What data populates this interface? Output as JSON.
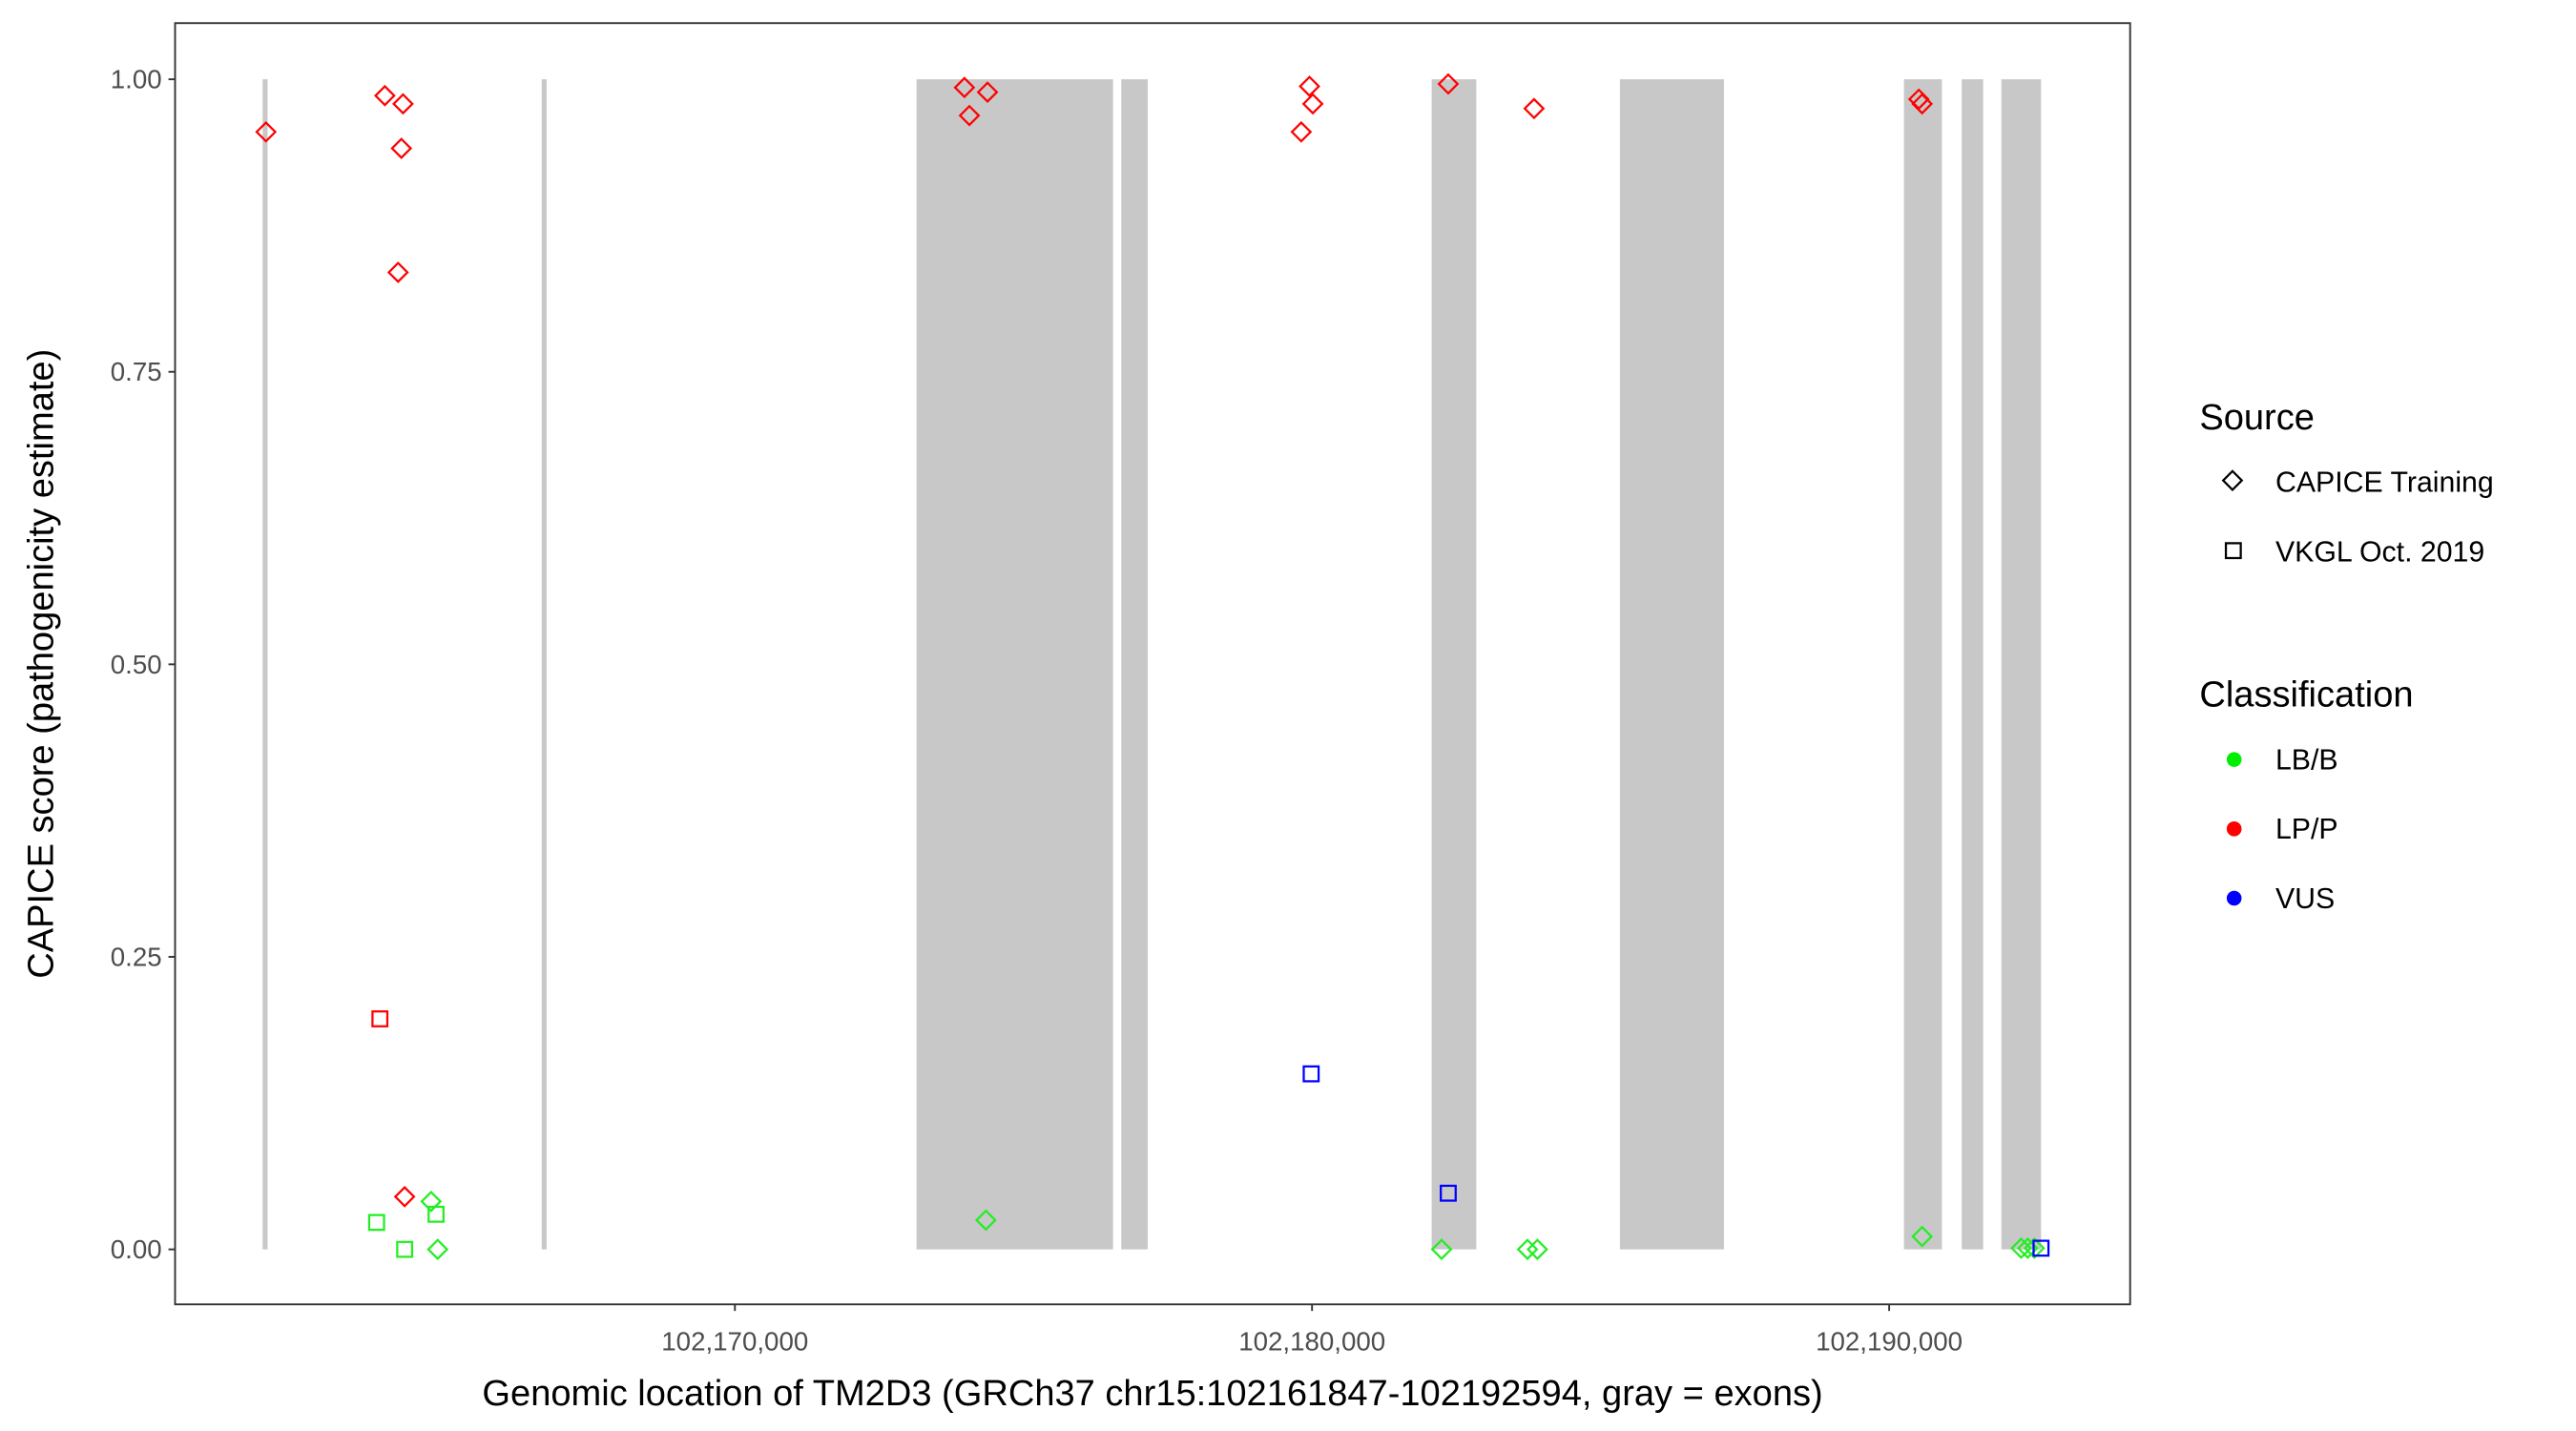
{
  "chart_data": {
    "type": "scatter",
    "title": "",
    "xlabel": "Genomic location of TM2D3 (GRCh37 chr15:102161847-102192594, gray = exons)",
    "ylabel": "CAPICE score (pathogenicity estimate)",
    "xlim": [
      102160300,
      102194175
    ],
    "ylim": [
      -0.047,
      1.048
    ],
    "grid": false,
    "x_ticks": [
      {
        "value": 102170000,
        "label": "102,170,000"
      },
      {
        "value": 102180000,
        "label": "102,180,000"
      },
      {
        "value": 102190000,
        "label": "102,190,000"
      }
    ],
    "y_ticks": [
      {
        "value": 0,
        "label": "0.00"
      },
      {
        "value": 0.25,
        "label": "0.25"
      },
      {
        "value": 0.5,
        "label": "0.50"
      },
      {
        "value": 0.75,
        "label": "0.75"
      },
      {
        "value": 1,
        "label": "1.00"
      }
    ],
    "exons": [
      [
        102161817,
        102161903
      ],
      [
        102166653,
        102166738
      ],
      [
        102173147,
        102176552
      ],
      [
        102176695,
        102177153
      ],
      [
        102182073,
        102182846
      ],
      [
        102185335,
        102187137
      ],
      [
        102190256,
        102190914
      ],
      [
        102191257,
        102191629
      ],
      [
        102191944,
        102192631
      ]
    ],
    "exon_color": "#c8c8c8",
    "legend": {
      "placement": "right",
      "source": {
        "title": "Source",
        "items": [
          {
            "label": "CAPICE Training",
            "shape": "diamond"
          },
          {
            "label": "VKGL Oct. 2019",
            "shape": "square"
          }
        ]
      },
      "classification": {
        "title": "Classification",
        "items": [
          {
            "label": "LB/B",
            "color": "#00ee00"
          },
          {
            "label": "LP/P",
            "color": "#ff0000"
          },
          {
            "label": "VUS",
            "color": "#0000ff"
          }
        ]
      }
    },
    "colors": {
      "LB/B": "#22ee22",
      "LP/P": "#ff0000",
      "VUS": "#0000ff"
    },
    "points": [
      {
        "x": 102161875,
        "y": 0.955,
        "source": "CAPICE Training",
        "class": "LP/P"
      },
      {
        "x": 102163935,
        "y": 0.986,
        "source": "CAPICE Training",
        "class": "LP/P"
      },
      {
        "x": 102164250,
        "y": 0.979,
        "source": "CAPICE Training",
        "class": "LP/P"
      },
      {
        "x": 102164221,
        "y": 0.941,
        "source": "CAPICE Training",
        "class": "LP/P"
      },
      {
        "x": 102164164,
        "y": 0.835,
        "source": "CAPICE Training",
        "class": "LP/P"
      },
      {
        "x": 102164278,
        "y": 0.045,
        "source": "CAPICE Training",
        "class": "LP/P"
      },
      {
        "x": 102173977,
        "y": 0.993,
        "source": "CAPICE Training",
        "class": "LP/P"
      },
      {
        "x": 102174063,
        "y": 0.969,
        "source": "CAPICE Training",
        "class": "LP/P"
      },
      {
        "x": 102174377,
        "y": 0.989,
        "source": "CAPICE Training",
        "class": "LP/P"
      },
      {
        "x": 102179956,
        "y": 0.994,
        "source": "CAPICE Training",
        "class": "LP/P"
      },
      {
        "x": 102180014,
        "y": 0.979,
        "source": "CAPICE Training",
        "class": "LP/P"
      },
      {
        "x": 102179813,
        "y": 0.955,
        "source": "CAPICE Training",
        "class": "LP/P"
      },
      {
        "x": 102182360,
        "y": 0.996,
        "source": "CAPICE Training",
        "class": "LP/P"
      },
      {
        "x": 102183847,
        "y": 0.975,
        "source": "CAPICE Training",
        "class": "LP/P"
      },
      {
        "x": 102190514,
        "y": 0.983,
        "source": "CAPICE Training",
        "class": "LP/P"
      },
      {
        "x": 102190571,
        "y": 0.979,
        "source": "CAPICE Training",
        "class": "LP/P"
      },
      {
        "x": 102163849,
        "y": 0.197,
        "source": "VKGL Oct. 2019",
        "class": "LP/P"
      },
      {
        "x": 102164736,
        "y": 0.041,
        "source": "CAPICE Training",
        "class": "LB/B"
      },
      {
        "x": 102164850,
        "y": 0.0,
        "source": "CAPICE Training",
        "class": "LB/B"
      },
      {
        "x": 102174349,
        "y": 0.025,
        "source": "CAPICE Training",
        "class": "LB/B"
      },
      {
        "x": 102182245,
        "y": 0.0,
        "source": "CAPICE Training",
        "class": "LB/B"
      },
      {
        "x": 102183733,
        "y": 0.0,
        "source": "CAPICE Training",
        "class": "LB/B"
      },
      {
        "x": 102183905,
        "y": 0.0,
        "source": "CAPICE Training",
        "class": "LB/B"
      },
      {
        "x": 102190571,
        "y": 0.011,
        "source": "CAPICE Training",
        "class": "LB/B"
      },
      {
        "x": 102192287,
        "y": 0.001,
        "source": "CAPICE Training",
        "class": "LB/B"
      },
      {
        "x": 102192401,
        "y": 0.001,
        "source": "CAPICE Training",
        "class": "LB/B"
      },
      {
        "x": 102192516,
        "y": 0.001,
        "source": "CAPICE Training",
        "class": "LB/B"
      },
      {
        "x": 102163792,
        "y": 0.023,
        "source": "VKGL Oct. 2019",
        "class": "LB/B"
      },
      {
        "x": 102164278,
        "y": 0.0,
        "source": "VKGL Oct. 2019",
        "class": "LB/B"
      },
      {
        "x": 102164822,
        "y": 0.03,
        "source": "VKGL Oct. 2019",
        "class": "LB/B"
      },
      {
        "x": 102179985,
        "y": 0.15,
        "source": "VKGL Oct. 2019",
        "class": "VUS"
      },
      {
        "x": 102182360,
        "y": 0.048,
        "source": "VKGL Oct. 2019",
        "class": "VUS"
      },
      {
        "x": 102192631,
        "y": 0.001,
        "source": "VKGL Oct. 2019",
        "class": "VUS"
      }
    ]
  }
}
